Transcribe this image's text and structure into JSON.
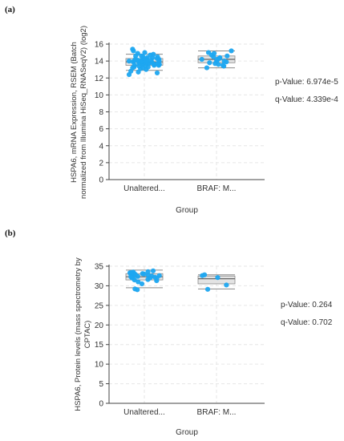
{
  "panels": [
    {
      "label": "(a)",
      "stats": {
        "p": "p-Value: 6.974e-5",
        "q": "q-Value: 4.339e-4"
      },
      "chart_data": {
        "type": "scatter",
        "categories": [
          "Unaltered...",
          "BRAF: M..."
        ],
        "ylabel_lines": [
          "HSPA6, mRNA Expression, RSEM (Batch",
          "normalized from Illumina HiSeq_RNASeqV2) (log2)"
        ],
        "xlabel": "Group",
        "ylim": [
          0,
          16
        ],
        "yticks": [
          0,
          2,
          4,
          6,
          8,
          10,
          12,
          14,
          16
        ],
        "boxes": [
          {
            "min": 12.9,
            "q1": 13.5,
            "median": 13.9,
            "q3": 14.3,
            "max": 14.8
          },
          {
            "min": 13.2,
            "q1": 13.8,
            "median": 14.2,
            "q3": 14.6,
            "max": 15.2
          }
        ],
        "points": [
          [
            12.4,
            12.6,
            12.8,
            13.0,
            13.1,
            13.2,
            13.3,
            13.3,
            13.4,
            13.4,
            13.5,
            13.5,
            13.5,
            13.6,
            13.6,
            13.6,
            13.7,
            13.7,
            13.7,
            13.8,
            13.8,
            13.8,
            13.8,
            13.9,
            13.9,
            13.9,
            13.9,
            14.0,
            14.0,
            14.0,
            14.0,
            14.1,
            14.1,
            14.1,
            14.2,
            14.2,
            14.2,
            14.3,
            14.3,
            14.4,
            14.4,
            14.5,
            14.5,
            14.6,
            14.7,
            14.8,
            14.9,
            15.0,
            15.2,
            15.4,
            12.7,
            13.2,
            13.6,
            14.1,
            14.6
          ],
          [
            13.2,
            13.4,
            13.6,
            13.7,
            13.8,
            13.9,
            14.0,
            14.0,
            14.1,
            14.2,
            14.2,
            14.3,
            14.4,
            14.5,
            14.6,
            14.7,
            14.9,
            15.0,
            15.2,
            13.5
          ]
        ]
      }
    },
    {
      "label": "(b)",
      "stats": {
        "p": "p-Value: 0.264",
        "q": "q-Value: 0.702"
      },
      "chart_data": {
        "type": "scatter",
        "categories": [
          "Unaltered...",
          "BRAF: M..."
        ],
        "ylabel_lines": [
          "HSPA6, Protein levels (mass spectrometry by",
          "CPTAC)"
        ],
        "xlabel": "Group",
        "ylim": [
          0,
          35
        ],
        "yticks": [
          0,
          5,
          10,
          15,
          20,
          25,
          30,
          35
        ],
        "boxes": [
          {
            "min": 29.5,
            "q1": 31.5,
            "median": 32.3,
            "q3": 33.1,
            "max": 34.0
          },
          {
            "min": 29.2,
            "q1": 30.5,
            "median": 31.8,
            "q3": 32.5,
            "max": 32.8
          }
        ],
        "points": [
          [
            29.0,
            30.5,
            31.0,
            31.3,
            31.6,
            31.8,
            32.0,
            32.1,
            32.2,
            32.3,
            32.4,
            32.5,
            32.6,
            32.7,
            32.8,
            32.9,
            33.0,
            33.1,
            33.2,
            33.3,
            33.5,
            33.6,
            33.8,
            29.2,
            31.5,
            32.0,
            32.6,
            33.4
          ],
          [
            29.1,
            30.2,
            32.1,
            32.6,
            32.8
          ]
        ]
      }
    }
  ],
  "colors": {
    "point": "#1ea7f0",
    "box_fill": "#e3e3e3",
    "box_line": "#8a8a8a",
    "axis": "#444444",
    "grid": "#e6e6e6"
  }
}
